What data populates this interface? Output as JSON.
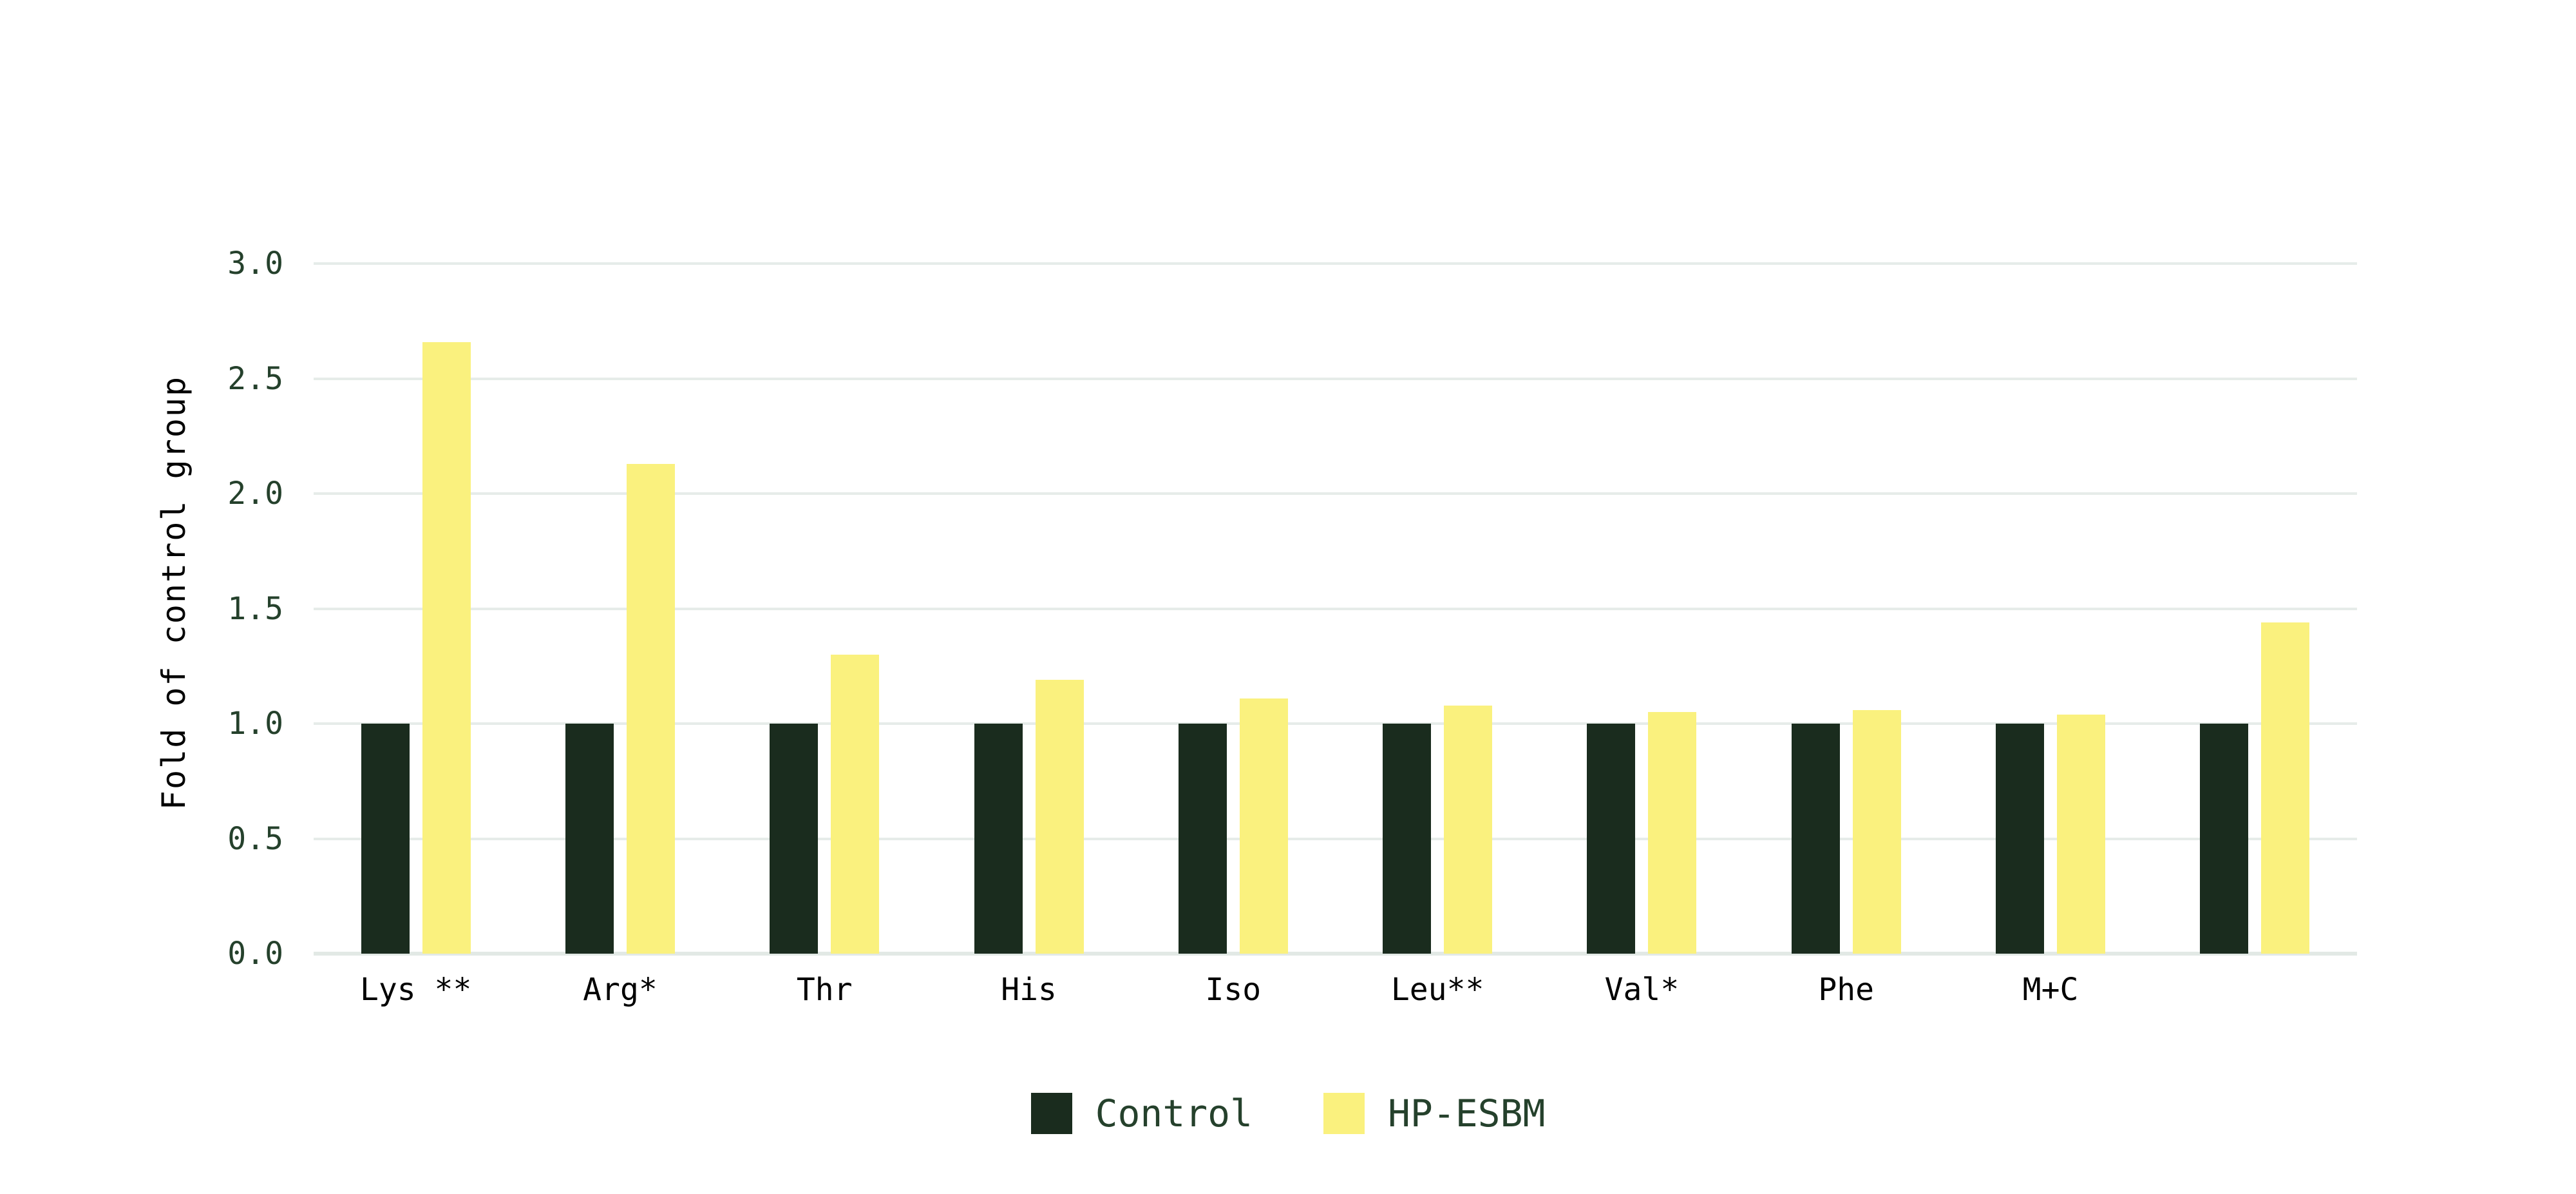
{
  "chart_data": {
    "type": "bar",
    "title": "",
    "xlabel": "",
    "ylabel": "Fold of control group",
    "ylim": [
      0,
      3.2
    ],
    "yticks": [
      0.0,
      0.5,
      1.0,
      1.5,
      2.0,
      2.5,
      3.0
    ],
    "ytick_labels": [
      "0.0",
      "0.5",
      "1.0",
      "1.5",
      "2.0",
      "2.5",
      "3.0"
    ],
    "categories": [
      "Lys **",
      "Arg*",
      "Thr",
      "His",
      "Iso",
      "Leu**",
      "Val*",
      "Phe",
      "M+C",
      ""
    ],
    "series": [
      {
        "name": "Control",
        "color": "#1a2c1e",
        "values": [
          1.0,
          1.0,
          1.0,
          1.0,
          1.0,
          1.0,
          1.0,
          1.0,
          1.0,
          1.0
        ]
      },
      {
        "name": "HP-ESBM",
        "color": "#faf17e",
        "values": [
          2.66,
          2.13,
          1.3,
          1.19,
          1.11,
          1.08,
          1.05,
          1.06,
          1.04,
          1.44
        ]
      }
    ],
    "grid": true,
    "legend_position": "bottom-center",
    "colors": {
      "background": "#ffffff",
      "gridline": "#e6ece9",
      "baseline": "#e2e9e5",
      "ytick_text": "#25412c",
      "xtick_text": "#000000",
      "ylabel_text": "#000000",
      "legend_text": "#25412c"
    }
  }
}
